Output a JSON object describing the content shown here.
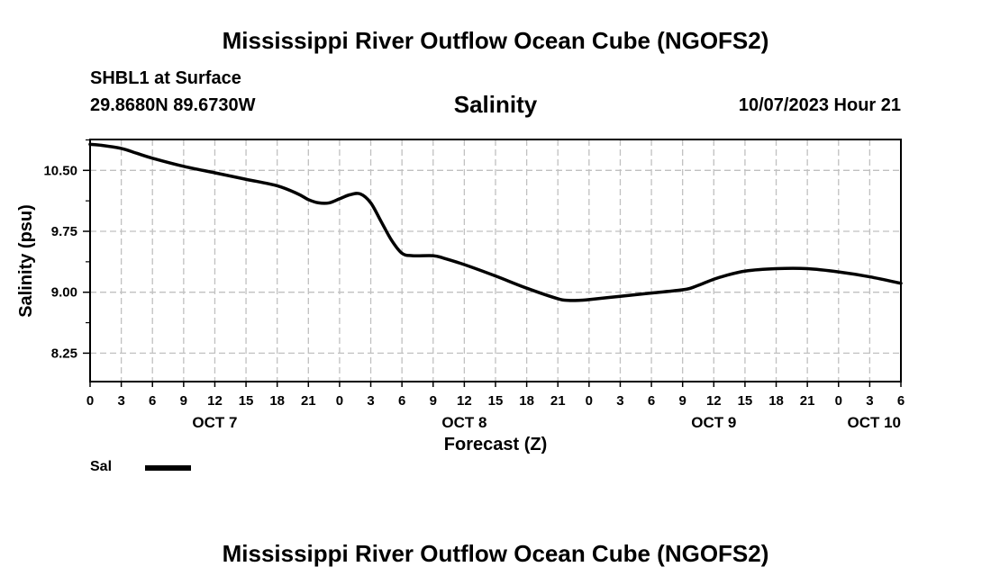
{
  "header": {
    "main_title": "Mississippi River Outflow Ocean Cube (NGOFS2)",
    "station": "SHBL1 at Surface",
    "coordinates": "29.8680N  89.6730W",
    "chart_title": "Salinity",
    "datetime": "10/07/2023 Hour 21"
  },
  "footer": {
    "main_title": "Mississippi River Outflow Ocean Cube (NGOFS2)"
  },
  "legend": {
    "label": "Sal"
  },
  "colors": {
    "line": "#000000",
    "grid": "#c0c0c0",
    "axis": "#000000"
  },
  "chart_data": {
    "type": "line",
    "title": "Salinity",
    "xlabel": "Forecast (Z)",
    "ylabel": "Salinity (psu)",
    "x_unit": "hours since Oct 7 00Z",
    "xlim": [
      0,
      78
    ],
    "ylim": [
      7.9,
      10.88
    ],
    "grid": true,
    "x_ticks": [
      0,
      3,
      6,
      9,
      12,
      15,
      18,
      21,
      24,
      27,
      30,
      33,
      36,
      39,
      42,
      45,
      48,
      51,
      54,
      57,
      60,
      63,
      66,
      69,
      72,
      75,
      78
    ],
    "x_tick_labels": [
      "0",
      "3",
      "6",
      "9",
      "12",
      "15",
      "18",
      "21",
      "0",
      "3",
      "6",
      "9",
      "12",
      "15",
      "18",
      "21",
      "0",
      "3",
      "6",
      "9",
      "12",
      "15",
      "18",
      "21",
      "0",
      "3",
      "6"
    ],
    "y_ticks": [
      8.25,
      9.0,
      9.75,
      10.5
    ],
    "y_tick_labels": [
      "8.25",
      "9.00",
      "9.75",
      "10.50"
    ],
    "day_labels": [
      {
        "x": 12,
        "label": "OCT 7"
      },
      {
        "x": 36,
        "label": "OCT 8"
      },
      {
        "x": 60,
        "label": "OCT 9"
      },
      {
        "x": 78,
        "label": "OCT 10"
      }
    ],
    "series": [
      {
        "name": "Sal",
        "x": [
          0,
          1,
          3,
          4.5,
          6,
          9,
          12,
          15,
          18,
          20,
          21,
          22,
          23,
          24,
          25,
          26,
          27,
          28,
          29,
          30,
          31,
          33,
          34,
          36,
          39,
          42,
          45,
          46,
          47,
          48,
          51,
          54,
          57,
          58,
          60,
          61,
          63,
          66,
          69,
          72,
          75,
          78
        ],
        "y": [
          10.82,
          10.81,
          10.77,
          10.71,
          10.65,
          10.55,
          10.47,
          10.39,
          10.31,
          10.21,
          10.14,
          10.1,
          10.1,
          10.15,
          10.2,
          10.21,
          10.1,
          9.87,
          9.64,
          9.48,
          9.45,
          9.45,
          9.42,
          9.34,
          9.2,
          9.05,
          8.92,
          8.9,
          8.9,
          8.91,
          8.95,
          8.99,
          9.03,
          9.06,
          9.16,
          9.2,
          9.26,
          9.29,
          9.29,
          9.25,
          9.19,
          9.11
        ]
      }
    ]
  }
}
